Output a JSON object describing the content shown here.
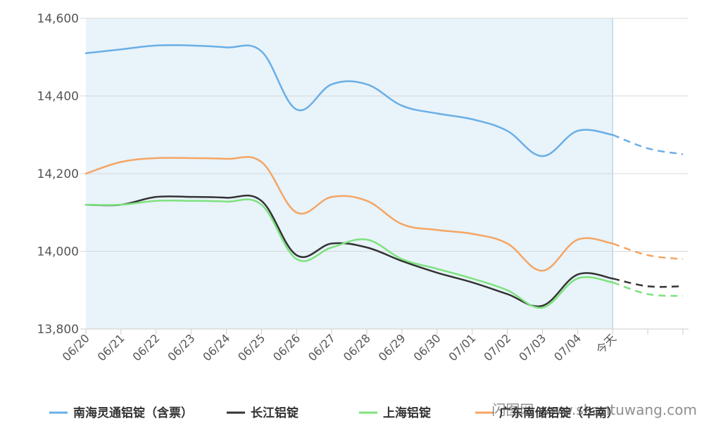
{
  "chart_data": {
    "type": "line",
    "title": "",
    "xlabel": "",
    "ylabel": "",
    "categories": [
      "06/20",
      "06/21",
      "06/22",
      "06/23",
      "06/24",
      "06/25",
      "06/26",
      "06/27",
      "06/28",
      "06/29",
      "06/30",
      "07/01",
      "07/02",
      "07/03",
      "07/04",
      "今天",
      "",
      ""
    ],
    "ylim": [
      13800,
      14600
    ],
    "yticks": [
      "14,600",
      "14,400",
      "14,200",
      "14,000",
      "13,800"
    ],
    "ytick_values": [
      14600,
      14400,
      14200,
      14000,
      13800
    ],
    "grid": "horizontal",
    "legend_position": "bottom",
    "shaded_until_category": "今天",
    "shade_color": "#e8f3fa",
    "series": [
      {
        "name": "南海灵通铝锭（含票）",
        "color": "#6aaee6",
        "style": "smooth",
        "values": [
          14510,
          14520,
          14530,
          14530,
          14525,
          14515,
          14365,
          14430,
          14430,
          14375,
          14355,
          14340,
          14310,
          14245,
          14310,
          14300,
          14265,
          14250
        ]
      },
      {
        "name": "长江铝锭",
        "color": "#333333",
        "style": "smooth",
        "values": [
          14120,
          14120,
          14140,
          14140,
          14138,
          14130,
          13990,
          14020,
          14010,
          13975,
          13945,
          13920,
          13890,
          13860,
          13940,
          13930,
          13910,
          13910
        ]
      },
      {
        "name": "上海铝锭",
        "color": "#7de27d",
        "style": "smooth",
        "values": [
          14120,
          14120,
          14130,
          14130,
          14128,
          14120,
          13980,
          14010,
          14030,
          13980,
          13955,
          13930,
          13900,
          13855,
          13930,
          13920,
          13890,
          13885
        ]
      },
      {
        "name": "广东南储铝锭（华南）",
        "color": "#f5a563",
        "style": "smooth",
        "values": [
          14200,
          14230,
          14240,
          14240,
          14238,
          14230,
          14100,
          14140,
          14130,
          14070,
          14055,
          14045,
          14020,
          13950,
          14030,
          14020,
          13990,
          13980
        ]
      }
    ],
    "forecast_from_index": 15
  },
  "watermarks": {
    "site": "闪图网 www.shantuwang.com"
  }
}
